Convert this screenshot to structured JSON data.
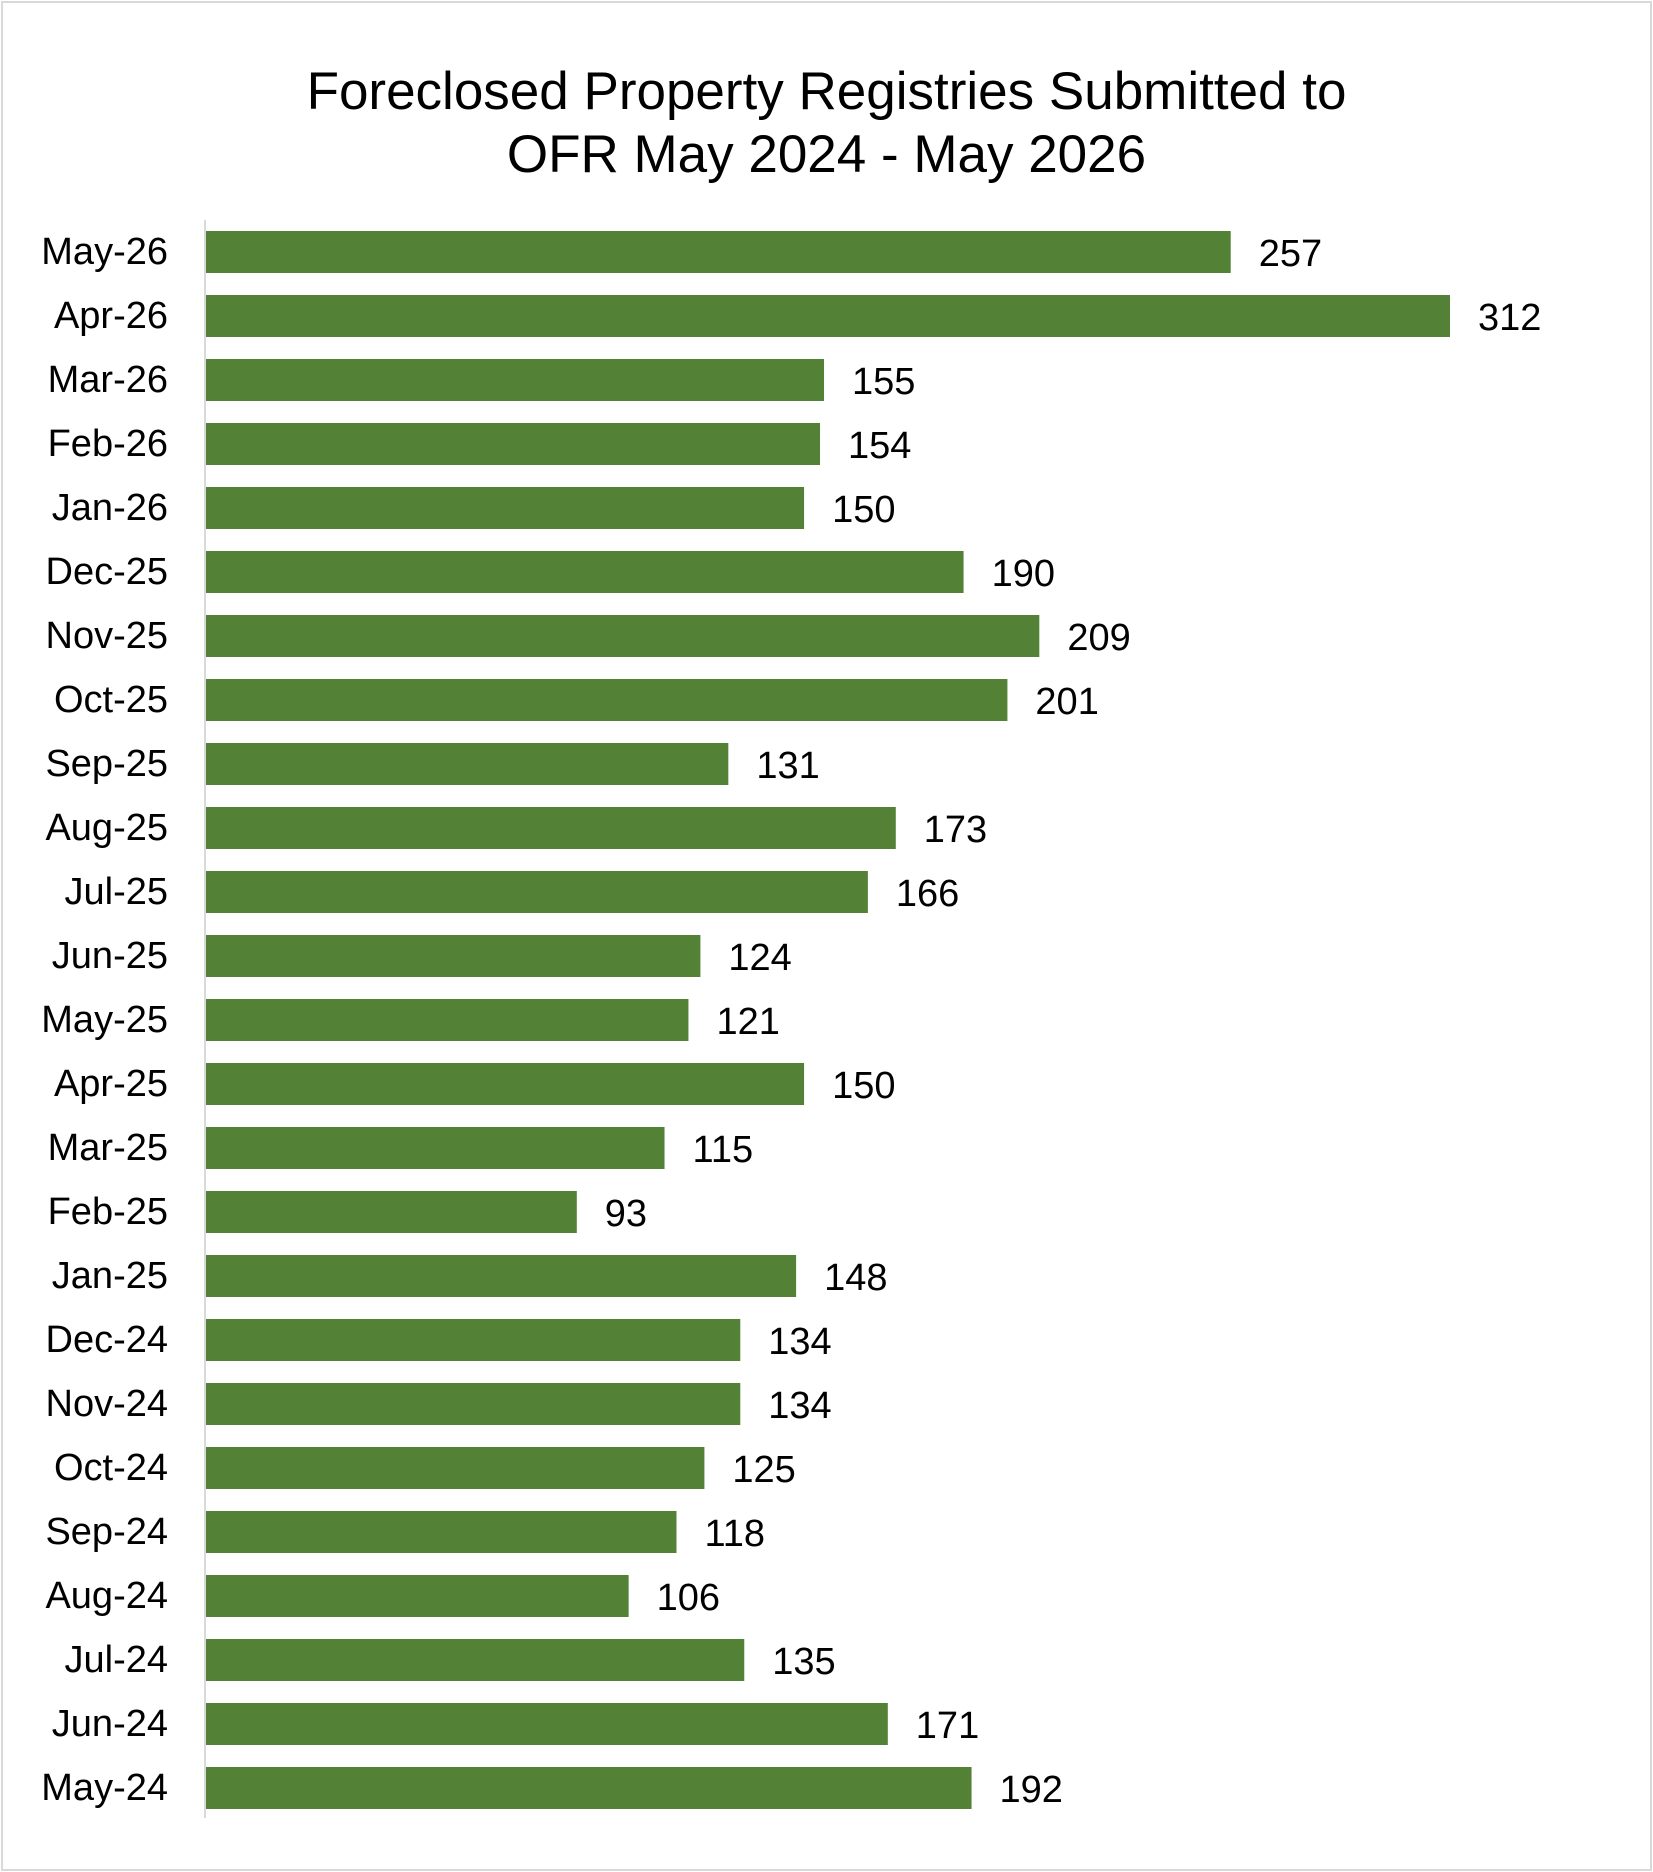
{
  "chart_data": {
    "type": "bar",
    "orientation": "horizontal",
    "title": [
      "Foreclosed Property Registries Submitted to",
      "OFR May 2024 - May 2026"
    ],
    "categories": [
      "May-26",
      "Apr-26",
      "Mar-26",
      "Feb-26",
      "Jan-26",
      "Dec-25",
      "Nov-25",
      "Oct-25",
      "Sep-25",
      "Aug-25",
      "Jul-25",
      "Jun-25",
      "May-25",
      "Apr-25",
      "Mar-25",
      "Feb-25",
      "Jan-25",
      "Dec-24",
      "Nov-24",
      "Oct-24",
      "Sep-24",
      "Aug-24",
      "Jul-24",
      "Jun-24",
      "May-24"
    ],
    "values": [
      257,
      312,
      155,
      154,
      150,
      190,
      209,
      201,
      131,
      173,
      166,
      124,
      121,
      150,
      115,
      93,
      148,
      134,
      134,
      125,
      118,
      106,
      135,
      171,
      192
    ],
    "data_labels": true,
    "xlim": [
      0,
      312
    ],
    "xlabel": "",
    "ylabel": "",
    "grid": false,
    "legend": "none",
    "bar_color": "#538135",
    "axis_color": "#d9d9d9"
  }
}
